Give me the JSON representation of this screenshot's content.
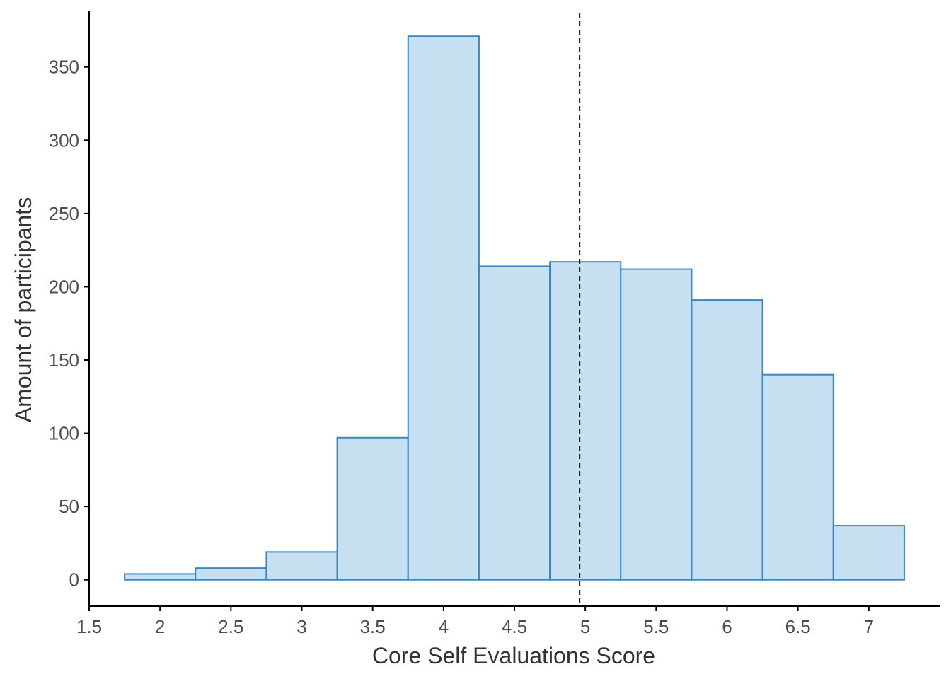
{
  "chart_data": {
    "type": "bar",
    "subtype": "histogram",
    "title": "",
    "xlabel": "Core Self Evaluations Score",
    "ylabel": "Amount of participants",
    "bins": [
      {
        "x0": 1.75,
        "x1": 2.25,
        "count": 4
      },
      {
        "x0": 2.25,
        "x1": 2.75,
        "count": 8
      },
      {
        "x0": 2.75,
        "x1": 3.25,
        "count": 19
      },
      {
        "x0": 3.25,
        "x1": 3.75,
        "count": 97
      },
      {
        "x0": 3.75,
        "x1": 4.25,
        "count": 371
      },
      {
        "x0": 4.25,
        "x1": 4.75,
        "count": 214
      },
      {
        "x0": 4.75,
        "x1": 5.25,
        "count": 217
      },
      {
        "x0": 5.25,
        "x1": 5.75,
        "count": 212
      },
      {
        "x0": 5.75,
        "x1": 6.25,
        "count": 191
      },
      {
        "x0": 6.25,
        "x1": 6.75,
        "count": 140
      },
      {
        "x0": 6.75,
        "x1": 7.25,
        "count": 37
      }
    ],
    "mean_line": 4.96,
    "xticks": [
      "1.5",
      "2",
      "2.5",
      "3",
      "3.5",
      "4",
      "4.5",
      "5",
      "5.5",
      "6",
      "6.5",
      "7"
    ],
    "yticks": [
      "0",
      "50",
      "100",
      "150",
      "200",
      "250",
      "300",
      "350"
    ],
    "xlim": [
      1.5,
      7.5
    ],
    "ylim": [
      -18,
      388
    ],
    "grid": false,
    "colors": {
      "bar_fill": "#c6dff1",
      "bar_stroke": "#3a87c2",
      "mean_line": "#000000",
      "axis": "#000000"
    }
  }
}
